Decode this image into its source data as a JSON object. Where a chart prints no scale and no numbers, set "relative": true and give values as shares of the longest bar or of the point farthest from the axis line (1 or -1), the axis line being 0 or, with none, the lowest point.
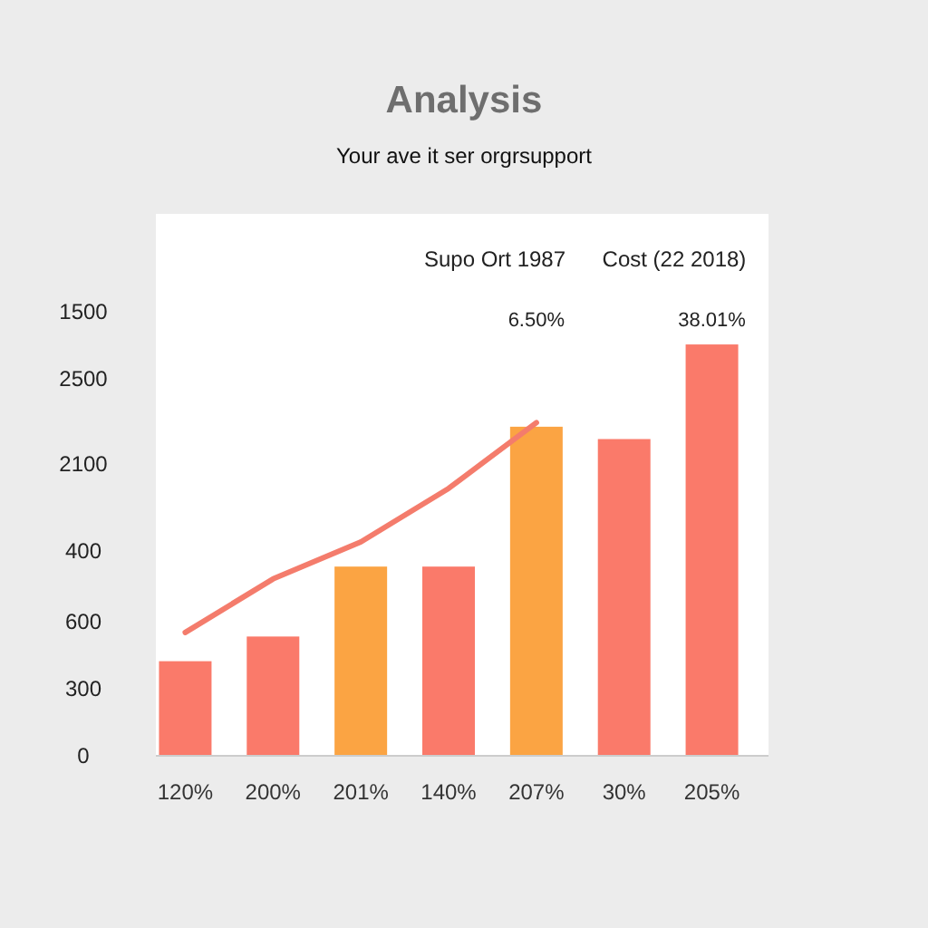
{
  "chart_data": {
    "type": "bar",
    "title": "Analysis",
    "subtitle": "Your ave it ser orgrsupport",
    "categories": [
      "120%",
      "200%",
      "201%",
      "140%",
      "207%",
      "30%",
      "205%"
    ],
    "relative": true,
    "annotations": [
      "Supo Ort 1987",
      "Cost (22 2018)",
      "6.50%",
      "38.01%",
      "1500",
      "2500",
      "2100",
      "400",
      "600",
      "300",
      "0"
    ],
    "series": [
      {
        "colors": [
          "#fa7a6a",
          "#fa7a6a",
          "#fba443",
          "#fa7a6a",
          "#fba443",
          "#fa7a6a",
          "#fa7a6a"
        ],
        "values": [
          0.23,
          0.29,
          0.46,
          0.46,
          0.8,
          0.77,
          1
        ]
      },
      {
        "type": "line",
        "color": "#f47c6c",
        "values": [
          0.3,
          0.43,
          0.52,
          0.65,
          0.81,
          null,
          null
        ]
      }
    ]
  }
}
